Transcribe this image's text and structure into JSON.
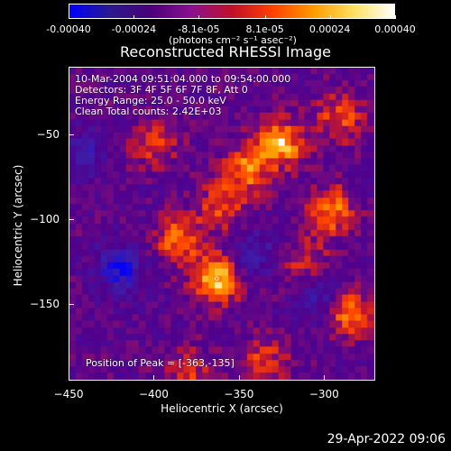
{
  "colorbar": {
    "ticks": [
      "-0.00040",
      "-0.00024",
      "-8.1e-05",
      "8.1e-05",
      "0.00024",
      "0.00040"
    ],
    "tick_values": [
      -0.0004,
      -0.00024,
      -8.1e-05,
      8.1e-05,
      0.00024,
      0.0004
    ],
    "range": [
      -0.0004,
      0.0004
    ],
    "label": "(photons cm⁻² s⁻¹ asec⁻²)",
    "colors": [
      "#0000ff",
      "#2a1a8c",
      "#4a007a",
      "#8a1090",
      "#c0102a",
      "#ff4000",
      "#ff9a00",
      "#ffe060",
      "#ffffff"
    ]
  },
  "plot": {
    "title": "Reconstructed RHESSI Image",
    "annotations": [
      "10-Mar-2004 09:51:04.000 to 09:54:00.000",
      "Detectors: 3F 4F 5F 6F 7F 8F, Att 0",
      "Energy Range: 25.0 - 50.0 keV",
      "Clean     Total counts: 2.42E+03"
    ],
    "peak_label": "Position of Peak = [-363,-135]"
  },
  "chart_data": {
    "type": "heatmap",
    "title": "Reconstructed RHESSI Image",
    "xlabel": "Heliocentric X (arcsec)",
    "ylabel": "Heliocentric Y (arcsec)",
    "xlim": [
      -450,
      -270
    ],
    "ylim": [
      -195,
      -10
    ],
    "xticks": [
      -450,
      -400,
      -350,
      -300
    ],
    "xtick_labels": [
      "−450",
      "−400",
      "−350",
      "−300"
    ],
    "yticks": [
      -50,
      -100,
      -150
    ],
    "ytick_labels": [
      "−50",
      "−100",
      "−150"
    ],
    "colorbar_range": [
      -0.0004,
      0.0004
    ],
    "peak_position": [
      -363,
      -135
    ],
    "bright_regions": [
      {
        "x": -363,
        "y": -135,
        "value": 0.0004
      },
      {
        "x": -325,
        "y": -55,
        "value": 0.00036
      },
      {
        "x": -345,
        "y": -70,
        "value": 0.0003
      },
      {
        "x": -385,
        "y": -112,
        "value": 0.00028
      },
      {
        "x": -295,
        "y": -95,
        "value": 0.0003
      },
      {
        "x": -285,
        "y": -155,
        "value": 0.0003
      },
      {
        "x": -290,
        "y": -40,
        "value": 0.00024
      },
      {
        "x": -400,
        "y": -55,
        "value": 0.0002
      },
      {
        "x": -360,
        "y": -92,
        "value": 0.00022
      },
      {
        "x": -335,
        "y": -185,
        "value": 0.00022
      },
      {
        "x": -380,
        "y": -190,
        "value": 0.00018
      },
      {
        "x": -310,
        "y": -125,
        "value": 0.00018
      }
    ],
    "dim_regions": [
      {
        "x": -420,
        "y": -130,
        "value": -0.0003
      },
      {
        "x": -300,
        "y": -145,
        "value": -0.0002
      },
      {
        "x": -440,
        "y": -60,
        "value": -0.00015
      },
      {
        "x": -340,
        "y": -120,
        "value": -0.00018
      }
    ]
  },
  "footer": {
    "timestamp": "29-Apr-2022 09:06"
  }
}
